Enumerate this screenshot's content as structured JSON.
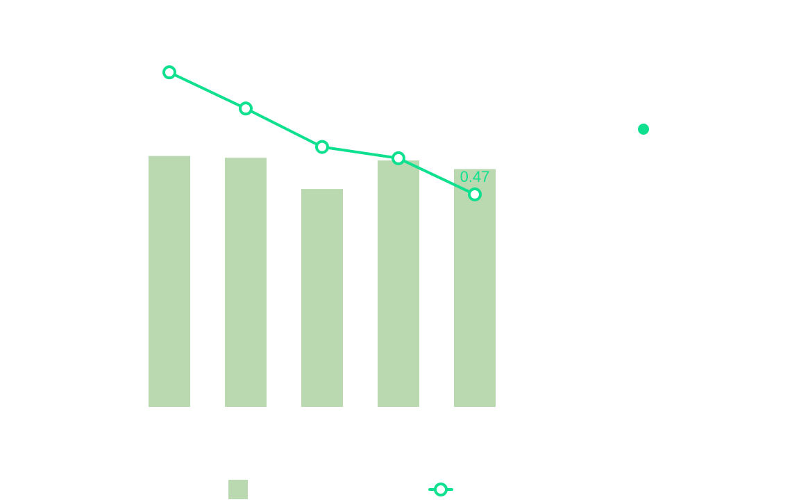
{
  "chart_data": {
    "type": "bar",
    "categories": [
      "",
      "",
      "",
      "",
      ""
    ],
    "series": [
      {
        "kind": "bar",
        "values": [
          0.555,
          0.551,
          0.482,
          0.545,
          0.526
        ],
        "color": "#bad9b0"
      },
      {
        "kind": "line",
        "values": [
          0.74,
          0.66,
          0.575,
          0.55,
          0.47
        ],
        "color": "#0fe090",
        "marker": "hollow-circle"
      }
    ],
    "data_labels": [
      {
        "series": 1,
        "index": 4,
        "text": "0.47"
      }
    ],
    "ylim": [
      0,
      0.9
    ],
    "grid": false,
    "legend": {
      "position": "bottom"
    },
    "extra_marker": {
      "shape": "dot",
      "color": "#0fe090"
    }
  }
}
